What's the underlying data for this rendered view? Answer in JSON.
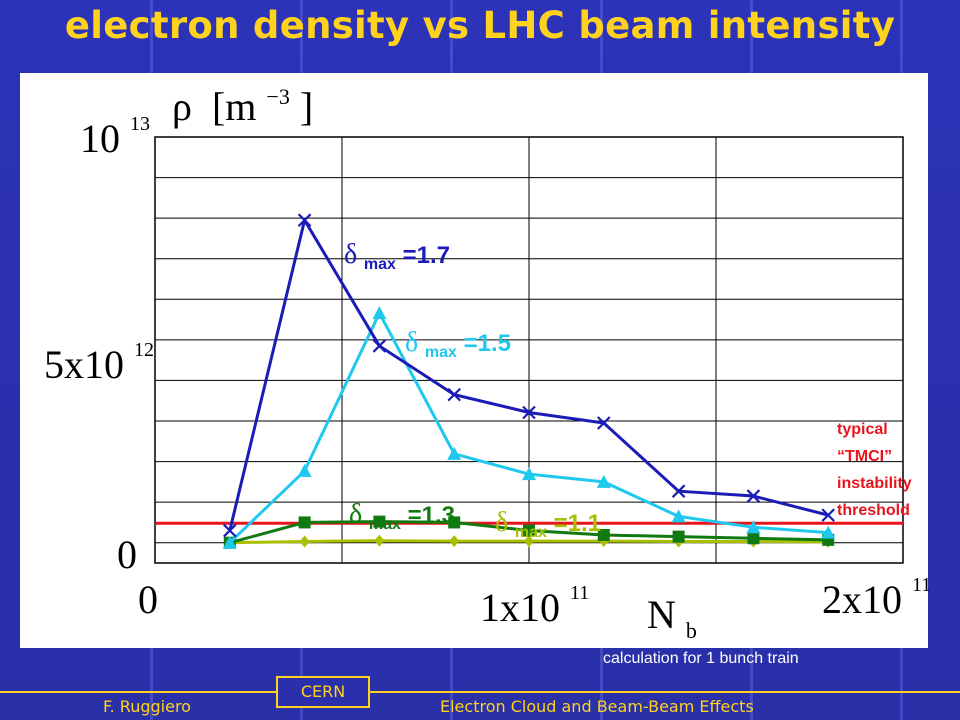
{
  "slide": {
    "title": "electron density vs LHC beam intensity",
    "caption": "calculation for 1 bunch train",
    "footer": {
      "author": "F. Ruggiero",
      "organization": "CERN",
      "talk": "Electron Cloud and Beam-Beam Effects"
    },
    "colors": {
      "background": "#2b30b0",
      "title": "#ffd21e",
      "footer_text": "#ffd21e",
      "caption": "#ffffff",
      "plot_panel": "#ffffff"
    }
  },
  "chart_data": {
    "type": "line",
    "ylabel": {
      "symbol": "ρ",
      "unit_base": "[m",
      "unit_exp": "−3",
      "unit_close": "]"
    },
    "xlabel": {
      "base": "N",
      "sub": "b"
    },
    "y_ticks": [
      {
        "value": 10000000000000,
        "base": "10",
        "exp": "13"
      },
      {
        "value": 5000000000000,
        "base": "5x10",
        "exp": "12"
      },
      {
        "value": 0,
        "base": "0",
        "exp": ""
      }
    ],
    "x_ticks": [
      {
        "value": 0,
        "base": "0",
        "exp": ""
      },
      {
        "value": 100000000000,
        "base": "1x10",
        "exp": "11"
      },
      {
        "value": 200000000000,
        "base": "2x10",
        "exp": "11"
      }
    ],
    "xlim": [
      0,
      200000000000
    ],
    "ylim": [
      -500000000000,
      10000000000000
    ],
    "grid": true,
    "x": [
      20000000000,
      40000000000,
      60000000000,
      80000000000,
      100000000000,
      120000000000,
      140000000000,
      160000000000,
      180000000000
    ],
    "series": [
      {
        "label_delta": "δ",
        "label_sub": "max",
        "label_value": "=1.7",
        "color": "#1b1bb8",
        "marker": "x",
        "values": [
          300000000000,
          7950000000000,
          4850000000000,
          3650000000000,
          3210000000000,
          2950000000000,
          1270000000000,
          1150000000000,
          680000000000
        ]
      },
      {
        "label_delta": "δ",
        "label_sub": "max",
        "label_value": "=1.5",
        "color": "#1ec8ee",
        "marker": "triangle",
        "values": [
          0,
          1770000000000,
          5660000000000,
          2190000000000,
          1690000000000,
          1500000000000,
          650000000000,
          380000000000,
          250000000000
        ]
      },
      {
        "label_delta": "δ",
        "label_sub": "max",
        "label_value": "=1.3",
        "color": "#107a10",
        "marker": "square",
        "values": [
          0,
          500000000000,
          520000000000,
          500000000000,
          300000000000,
          190000000000,
          150000000000,
          110000000000,
          70000000000
        ]
      },
      {
        "label_delta": "δ",
        "label_sub": "max",
        "label_value": "=1.1",
        "color": "#a8c000",
        "marker": "diamond",
        "values": [
          0,
          30000000000,
          50000000000,
          40000000000,
          40000000000,
          40000000000,
          30000000000,
          30000000000,
          20000000000
        ]
      }
    ],
    "threshold": {
      "value": 480000000000,
      "color": "#e8141c",
      "label_lines": [
        "typical",
        "“TMCI”",
        "instability",
        "threshold"
      ]
    }
  }
}
